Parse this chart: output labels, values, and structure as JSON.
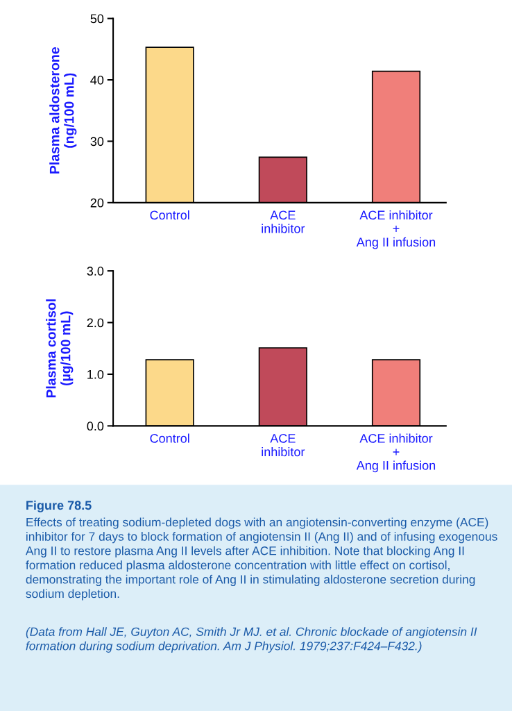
{
  "chart_data": [
    {
      "type": "bar",
      "ylabel": "Plasma aldosterone\n(ng/100 mL)",
      "categories": [
        "Control",
        "ACE\ninhibitor",
        "ACE inhibitor\n+\nAng II infusion"
      ],
      "values": [
        45.3,
        27.4,
        41.4
      ],
      "colors": [
        "#fcd98a",
        "#c04a5a",
        "#f07f7a"
      ],
      "ylim": [
        20,
        50
      ],
      "yticks": [
        20,
        30,
        40,
        50
      ],
      "grid": false
    },
    {
      "type": "bar",
      "ylabel": "Plasma cortisol\n(µg/100 mL)",
      "categories": [
        "Control",
        "ACE\ninhibitor",
        "ACE inhibitor\n+\nAng II infusion"
      ],
      "values": [
        1.28,
        1.51,
        1.28
      ],
      "colors": [
        "#fcd98a",
        "#c04a5a",
        "#f07f7a"
      ],
      "ylim": [
        0,
        3.0
      ],
      "yticks": [
        {
          "value": 0,
          "label": "0.0"
        },
        {
          "value": 1,
          "label": "1.0"
        },
        {
          "value": 2,
          "label": "2.0"
        },
        {
          "value": 3,
          "label": "3.0"
        }
      ],
      "grid": false,
      "annotations": [
        "Figure 78.5",
        "Effects of treating sodium-depleted dogs with an angiotensin-converting enzyme (ACE) inhibitor for 7 days to block formation of angiotensin II (Ang II) and of infusing exogenous Ang II to restore plasma Ang II levels after ACE inhibition. Note that blocking Ang II formation reduced plasma aldosterone concentration with little effect on cortisol, demonstrating the important role of Ang II in stimulating aldosterone secretion during sodium depletion.",
        "(Data from Hall JE, Guyton AC, Smith Jr MJ. et al. Chronic blockade of angiotensin II formation during sodium deprivation. Am J Physiol. 1979;237:F424–F432.)"
      ]
    }
  ]
}
